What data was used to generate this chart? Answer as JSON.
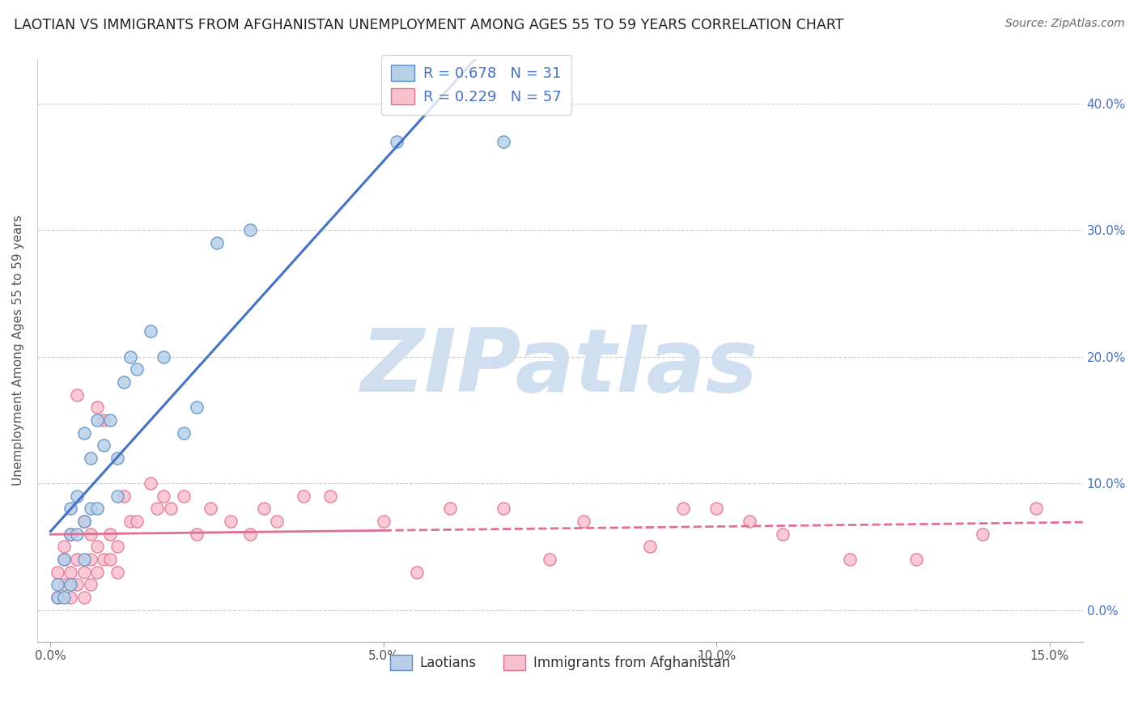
{
  "title": "LAOTIAN VS IMMIGRANTS FROM AFGHANISTAN UNEMPLOYMENT AMONG AGES 55 TO 59 YEARS CORRELATION CHART",
  "source": "Source: ZipAtlas.com",
  "ylabel": "Unemployment Among Ages 55 to 59 years",
  "xlim": [
    -0.002,
    0.155
  ],
  "ylim": [
    -0.025,
    0.435
  ],
  "xticks": [
    0.0,
    0.05,
    0.1,
    0.15
  ],
  "xtick_labels": [
    "0.0%",
    "5.0%",
    "10.0%",
    "15.0%"
  ],
  "yticks": [
    0.0,
    0.1,
    0.2,
    0.3,
    0.4
  ],
  "ytick_labels": [
    "0.0%",
    "10.0%",
    "20.0%",
    "30.0%",
    "40.0%"
  ],
  "laotian_color": "#b8d0e8",
  "laotian_edge_color": "#5b8ec4",
  "laotian_line_color": "#4472c4",
  "afghanistan_color": "#f9c0ce",
  "afghanistan_edge_color": "#e07090",
  "afghanistan_line_color": "#e07090",
  "stat_text_color": "#4472c4",
  "watermark_text": "ZIPatlas",
  "watermark_color": "#d0dff0",
  "legend_R1": "R = 0.678",
  "legend_N1": "N = 31",
  "legend_R2": "R = 0.229",
  "legend_N2": "N = 57",
  "legend_label1": "Laotians",
  "legend_label2": "Immigrants from Afghanistan",
  "laotian_x": [
    0.001,
    0.001,
    0.002,
    0.002,
    0.003,
    0.003,
    0.003,
    0.004,
    0.004,
    0.005,
    0.005,
    0.005,
    0.006,
    0.006,
    0.007,
    0.007,
    0.008,
    0.009,
    0.01,
    0.01,
    0.011,
    0.012,
    0.013,
    0.015,
    0.017,
    0.02,
    0.022,
    0.025,
    0.03,
    0.052,
    0.068
  ],
  "laotian_y": [
    0.01,
    0.02,
    0.01,
    0.04,
    0.02,
    0.06,
    0.08,
    0.06,
    0.09,
    0.04,
    0.07,
    0.14,
    0.12,
    0.08,
    0.15,
    0.08,
    0.13,
    0.15,
    0.12,
    0.09,
    0.18,
    0.2,
    0.19,
    0.22,
    0.2,
    0.14,
    0.16,
    0.29,
    0.3,
    0.37,
    0.37
  ],
  "afghanistan_x": [
    0.001,
    0.001,
    0.002,
    0.002,
    0.002,
    0.003,
    0.003,
    0.003,
    0.004,
    0.004,
    0.004,
    0.005,
    0.005,
    0.005,
    0.006,
    0.006,
    0.006,
    0.007,
    0.007,
    0.007,
    0.008,
    0.008,
    0.009,
    0.009,
    0.01,
    0.01,
    0.011,
    0.012,
    0.013,
    0.015,
    0.016,
    0.017,
    0.018,
    0.02,
    0.022,
    0.024,
    0.027,
    0.03,
    0.032,
    0.034,
    0.038,
    0.042,
    0.05,
    0.055,
    0.06,
    0.068,
    0.075,
    0.08,
    0.09,
    0.095,
    0.1,
    0.105,
    0.11,
    0.12,
    0.13,
    0.14,
    0.148
  ],
  "afghanistan_y": [
    0.01,
    0.03,
    0.02,
    0.04,
    0.05,
    0.01,
    0.03,
    0.06,
    0.02,
    0.04,
    0.17,
    0.01,
    0.03,
    0.07,
    0.02,
    0.04,
    0.06,
    0.03,
    0.05,
    0.16,
    0.04,
    0.15,
    0.04,
    0.06,
    0.03,
    0.05,
    0.09,
    0.07,
    0.07,
    0.1,
    0.08,
    0.09,
    0.08,
    0.09,
    0.06,
    0.08,
    0.07,
    0.06,
    0.08,
    0.07,
    0.09,
    0.09,
    0.07,
    0.03,
    0.08,
    0.08,
    0.04,
    0.07,
    0.05,
    0.08,
    0.08,
    0.07,
    0.06,
    0.04,
    0.04,
    0.06,
    0.08
  ]
}
